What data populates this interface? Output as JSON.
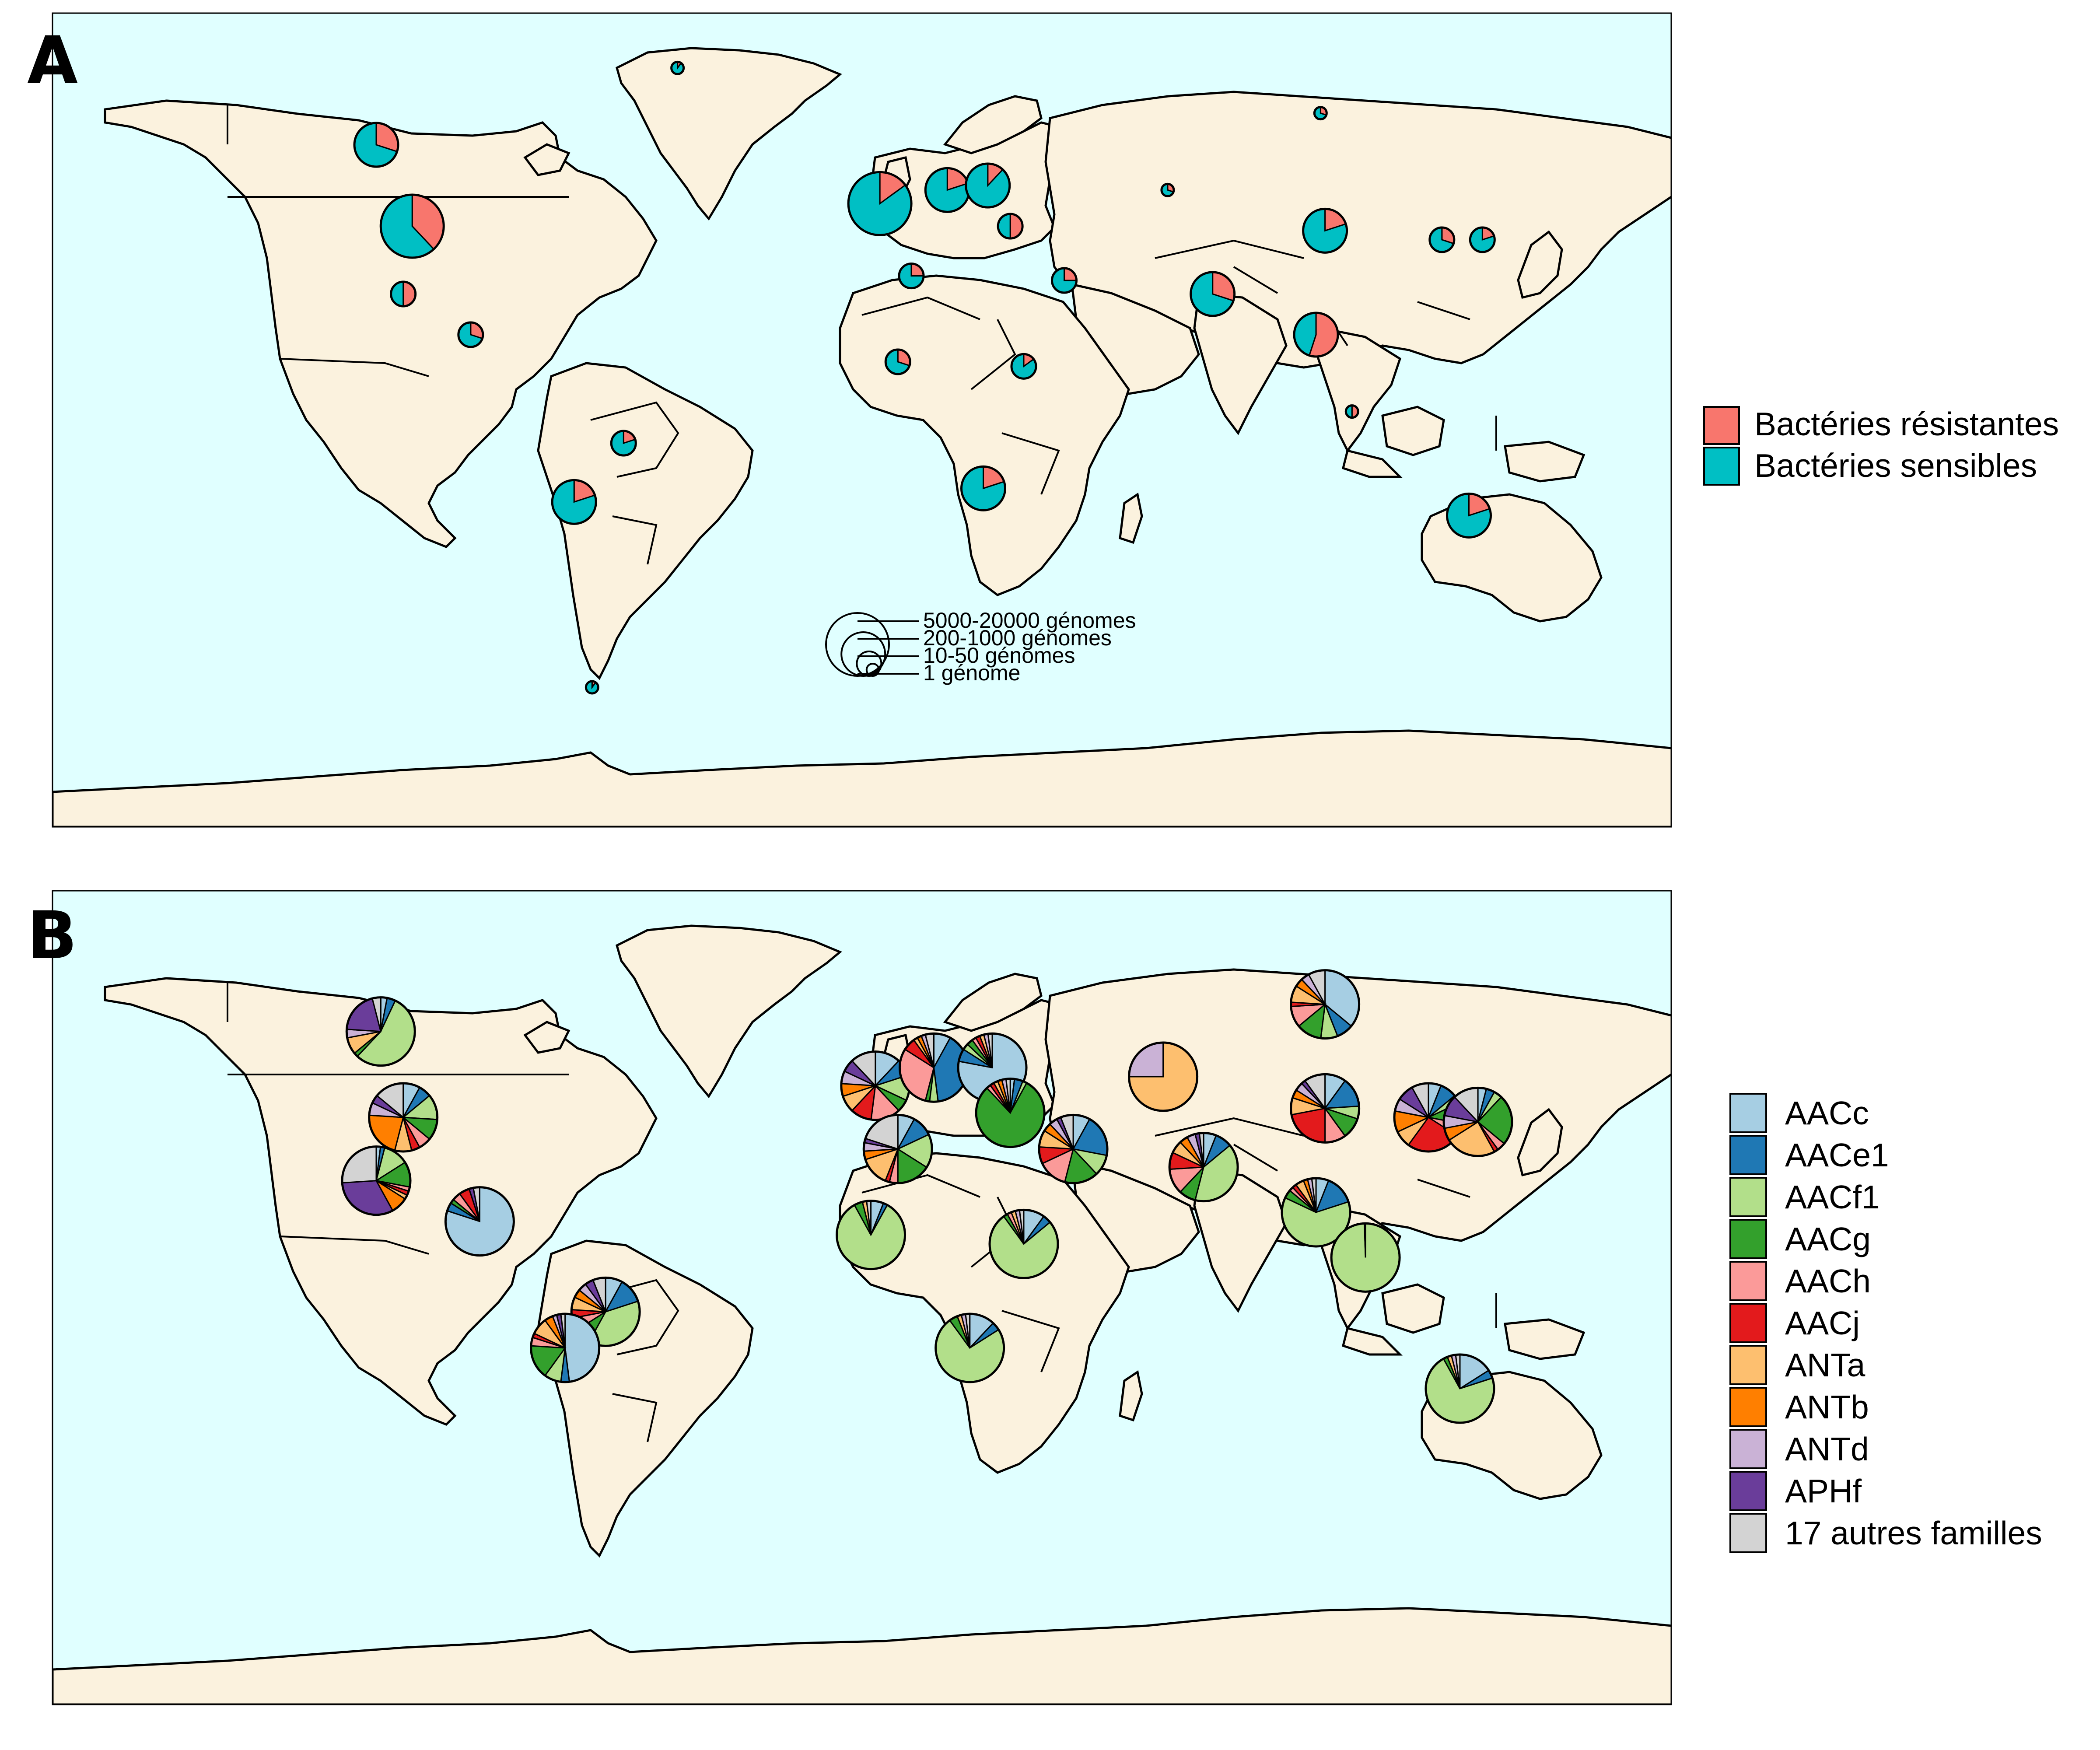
{
  "colors": {
    "ocean": "#E0FFFF",
    "land": "#FBF2DE",
    "outline": "#000000"
  },
  "panels": [
    {
      "letter": "A",
      "legend": [
        {
          "label": "Bactéries résistantes",
          "color": "#F8766D"
        },
        {
          "label": "Bactéries sensibles",
          "color": "#00BFC4"
        }
      ],
      "size_legend": [
        {
          "label": "5000-20000 génomes"
        },
        {
          "label": "200-1000 génomes"
        },
        {
          "label": "10-50 génomes"
        },
        {
          "label": "1 génome"
        }
      ],
      "pies": [
        {
          "name": "canada",
          "lon": -108,
          "lat": 57,
          "size": 2,
          "values": [
            0.3,
            0.7
          ]
        },
        {
          "name": "usa",
          "lon": -100,
          "lat": 39,
          "size": 3,
          "values": [
            0.38,
            0.62
          ]
        },
        {
          "name": "mexico",
          "lon": -102,
          "lat": 24,
          "size": 1,
          "values": [
            0.5,
            0.5
          ]
        },
        {
          "name": "central-america",
          "lon": -87,
          "lat": 15,
          "size": 1,
          "values": [
            0.3,
            0.7
          ]
        },
        {
          "name": "brazil",
          "lon": -53,
          "lat": -9,
          "size": 1,
          "values": [
            0.2,
            0.8
          ]
        },
        {
          "name": "south-cone",
          "lon": -64,
          "lat": -22,
          "size": 2,
          "values": [
            0.2,
            0.8
          ]
        },
        {
          "name": "greenland",
          "lon": -41,
          "lat": 74,
          "size": 0,
          "values": [
            0.1,
            0.9
          ]
        },
        {
          "name": "western-europe",
          "lon": 4,
          "lat": 44,
          "size": 3,
          "values": [
            0.15,
            0.85
          ]
        },
        {
          "name": "central-europe",
          "lon": 19,
          "lat": 47,
          "size": 2,
          "values": [
            0.2,
            0.8
          ]
        },
        {
          "name": "eastern-europe",
          "lon": 28,
          "lat": 48,
          "size": 2,
          "values": [
            0.12,
            0.88
          ]
        },
        {
          "name": "turkey",
          "lon": 33,
          "lat": 39,
          "size": 1,
          "values": [
            0.5,
            0.5
          ]
        },
        {
          "name": "north-africa",
          "lon": 11,
          "lat": 28,
          "size": 1,
          "values": [
            0.25,
            0.75
          ]
        },
        {
          "name": "west-africa",
          "lon": 8,
          "lat": 9,
          "size": 1,
          "values": [
            0.3,
            0.7
          ]
        },
        {
          "name": "east-africa",
          "lon": 36,
          "lat": 8,
          "size": 1,
          "values": [
            0.15,
            0.85
          ]
        },
        {
          "name": "southern-africa",
          "lon": 27,
          "lat": -19,
          "size": 2,
          "values": [
            0.2,
            0.8
          ]
        },
        {
          "name": "middle-east",
          "lon": 45,
          "lat": 27,
          "size": 1,
          "values": [
            0.25,
            0.75
          ]
        },
        {
          "name": "russia",
          "lon": 102,
          "lat": 64,
          "size": 0,
          "values": [
            0.3,
            0.7
          ]
        },
        {
          "name": "central-asia",
          "lon": 68,
          "lat": 47,
          "size": 0,
          "values": [
            0.3,
            0.7
          ]
        },
        {
          "name": "south-asia",
          "lon": 78,
          "lat": 24,
          "size": 2,
          "values": [
            0.3,
            0.7
          ]
        },
        {
          "name": "china",
          "lon": 103,
          "lat": 38,
          "size": 2,
          "values": [
            0.2,
            0.8
          ]
        },
        {
          "name": "korea",
          "lon": 129,
          "lat": 36,
          "size": 1,
          "values": [
            0.3,
            0.7
          ]
        },
        {
          "name": "japan",
          "lon": 138,
          "lat": 36,
          "size": 1,
          "values": [
            0.2,
            0.8
          ]
        },
        {
          "name": "southeast-asia",
          "lon": 101,
          "lat": 15,
          "size": 2,
          "values": [
            0.55,
            0.45
          ]
        },
        {
          "name": "maritime-se-asia",
          "lon": 109,
          "lat": -2,
          "size": 0,
          "values": [
            0.5,
            0.5
          ]
        },
        {
          "name": "australia",
          "lon": 135,
          "lat": -25,
          "size": 2,
          "values": [
            0.2,
            0.8
          ]
        },
        {
          "name": "antarctica",
          "lon": -60,
          "lat": -63,
          "size": 0,
          "values": [
            0.1,
            0.9
          ]
        }
      ]
    },
    {
      "letter": "B",
      "legend": [
        {
          "label": "AACc",
          "color": "#A6CEE3"
        },
        {
          "label": "AACe1",
          "color": "#1F78B4"
        },
        {
          "label": "AACf1",
          "color": "#B2DF8A"
        },
        {
          "label": "AACg",
          "color": "#33A02C"
        },
        {
          "label": "AACh",
          "color": "#FB9A99"
        },
        {
          "label": "AACj",
          "color": "#E31A1C"
        },
        {
          "label": "ANTa",
          "color": "#FDBF6F"
        },
        {
          "label": "ANTb",
          "color": "#FF7F00"
        },
        {
          "label": "ANTd",
          "color": "#CAB2D6"
        },
        {
          "label": "APHf",
          "color": "#6A3D9A"
        },
        {
          "label": "17 autres familles",
          "color": "#D3D3D3"
        }
      ],
      "pies": [
        {
          "name": "canada",
          "lon": -107,
          "lat": 55,
          "values": [
            0.03,
            0.04,
            0.55,
            0.02,
            0.0,
            0.0,
            0.08,
            0.0,
            0.04,
            0.2,
            0.04
          ]
        },
        {
          "name": "usa",
          "lon": -102,
          "lat": 36,
          "values": [
            0.08,
            0.06,
            0.12,
            0.1,
            0.06,
            0.04,
            0.08,
            0.22,
            0.06,
            0.04,
            0.14
          ]
        },
        {
          "name": "mexico",
          "lon": -108,
          "lat": 22,
          "values": [
            0.02,
            0.02,
            0.12,
            0.12,
            0.02,
            0.02,
            0.02,
            0.08,
            0.0,
            0.32,
            0.26
          ]
        },
        {
          "name": "central-america",
          "lon": -85,
          "lat": 13,
          "values": [
            0.8,
            0.04,
            0.0,
            0.02,
            0.04,
            0.05,
            0.0,
            0.0,
            0.0,
            0.02,
            0.03
          ]
        },
        {
          "name": "brazil",
          "lon": -57,
          "lat": -7,
          "values": [
            0.08,
            0.12,
            0.38,
            0.08,
            0.06,
            0.04,
            0.06,
            0.04,
            0.04,
            0.04,
            0.06
          ]
        },
        {
          "name": "andes",
          "lon": -66,
          "lat": -15,
          "values": [
            0.48,
            0.04,
            0.08,
            0.16,
            0.04,
            0.02,
            0.08,
            0.04,
            0.02,
            0.02,
            0.02
          ]
        },
        {
          "name": "western-europe",
          "lon": 3,
          "lat": 43,
          "values": [
            0.12,
            0.08,
            0.12,
            0.06,
            0.14,
            0.1,
            0.08,
            0.06,
            0.06,
            0.06,
            0.12
          ]
        },
        {
          "name": "central-europe",
          "lon": 16,
          "lat": 47,
          "values": [
            0.08,
            0.4,
            0.04,
            0.02,
            0.3,
            0.06,
            0.02,
            0.02,
            0.02,
            0.0,
            0.04
          ]
        },
        {
          "name": "eastern-europe",
          "lon": 29,
          "lat": 47,
          "values": [
            0.78,
            0.06,
            0.03,
            0.03,
            0.02,
            0.02,
            0.02,
            0.0,
            0.02,
            0.0,
            0.02
          ]
        },
        {
          "name": "turkey-caucasus",
          "lon": 33,
          "lat": 37,
          "values": [
            0.02,
            0.04,
            0.02,
            0.8,
            0.02,
            0.02,
            0.02,
            0.02,
            0.02,
            0.0,
            0.02
          ]
        },
        {
          "name": "north-africa",
          "lon": 8,
          "lat": 29,
          "values": [
            0.08,
            0.1,
            0.16,
            0.16,
            0.04,
            0.02,
            0.14,
            0.04,
            0.04,
            0.02,
            0.2
          ]
        },
        {
          "name": "west-africa",
          "lon": 2,
          "lat": 10,
          "values": [
            0.06,
            0.02,
            0.84,
            0.04,
            0.0,
            0.0,
            0.02,
            0.0,
            0.0,
            0.0,
            0.02
          ]
        },
        {
          "name": "east-africa",
          "lon": 36,
          "lat": 8,
          "values": [
            0.1,
            0.04,
            0.76,
            0.02,
            0.02,
            0.0,
            0.02,
            0.0,
            0.02,
            0.0,
            0.02
          ]
        },
        {
          "name": "southern-africa",
          "lon": 24,
          "lat": -15,
          "values": [
            0.12,
            0.04,
            0.74,
            0.04,
            0.0,
            0.0,
            0.02,
            0.0,
            0.02,
            0.0,
            0.02
          ]
        },
        {
          "name": "middle-east",
          "lon": 47,
          "lat": 29,
          "values": [
            0.08,
            0.2,
            0.1,
            0.16,
            0.14,
            0.08,
            0.08,
            0.04,
            0.04,
            0.02,
            0.06
          ]
        },
        {
          "name": "central-asia",
          "lon": 67,
          "lat": 45,
          "values": [
            0.0,
            0.0,
            0.0,
            0.0,
            0.0,
            0.0,
            0.75,
            0.0,
            0.25,
            0.0,
            0.0
          ]
        },
        {
          "name": "south-asia",
          "lon": 76,
          "lat": 25,
          "values": [
            0.06,
            0.08,
            0.4,
            0.08,
            0.12,
            0.08,
            0.06,
            0.04,
            0.04,
            0.02,
            0.02
          ]
        },
        {
          "name": "russia",
          "lon": 103,
          "lat": 61,
          "values": [
            0.36,
            0.08,
            0.08,
            0.12,
            0.1,
            0.02,
            0.08,
            0.04,
            0.04,
            0.0,
            0.08
          ]
        },
        {
          "name": "china",
          "lon": 103,
          "lat": 38,
          "values": [
            0.1,
            0.14,
            0.06,
            0.1,
            0.1,
            0.22,
            0.08,
            0.04,
            0.04,
            0.02,
            0.1
          ]
        },
        {
          "name": "korea",
          "lon": 126,
          "lat": 36,
          "values": [
            0.06,
            0.08,
            0.04,
            0.1,
            0.06,
            0.26,
            0.08,
            0.1,
            0.06,
            0.08,
            0.08
          ]
        },
        {
          "name": "japan",
          "lon": 137,
          "lat": 35,
          "values": [
            0.04,
            0.04,
            0.04,
            0.24,
            0.04,
            0.02,
            0.24,
            0.06,
            0.06,
            0.1,
            0.12
          ]
        },
        {
          "name": "indochina",
          "lon": 101,
          "lat": 15,
          "values": [
            0.06,
            0.14,
            0.62,
            0.04,
            0.02,
            0.02,
            0.04,
            0.02,
            0.02,
            0.0,
            0.02
          ]
        },
        {
          "name": "maritime-se-asia",
          "lon": 112,
          "lat": 5,
          "values": [
            0.0,
            0.0,
            0.995,
            0.005,
            0.0,
            0.0,
            0.0,
            0.0,
            0.0,
            0.0,
            0.0
          ]
        },
        {
          "name": "australia",
          "lon": 133,
          "lat": -24,
          "values": [
            0.16,
            0.04,
            0.72,
            0.02,
            0.0,
            0.0,
            0.02,
            0.0,
            0.02,
            0.0,
            0.02
          ]
        }
      ]
    }
  ]
}
